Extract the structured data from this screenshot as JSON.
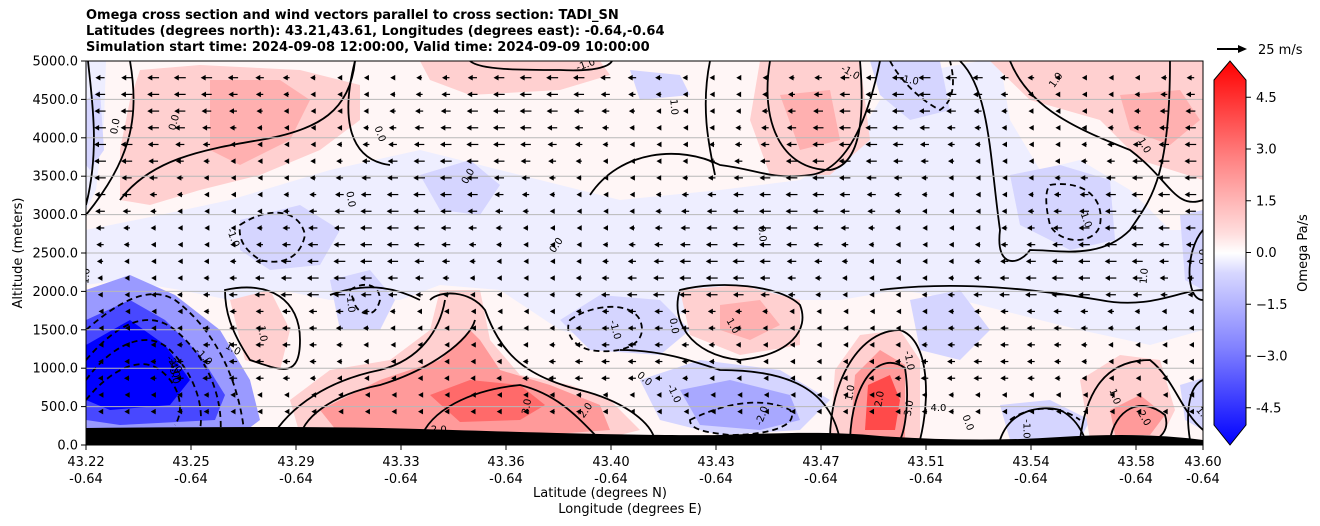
{
  "chart_data": {
    "type": "heatmap",
    "title_lines": [
      "Omega cross section and wind vectors parallel to cross section: TADI_SN",
      "Latitudes (degrees north): 43.21,43.61, Longitudes (degrees east): -0.64,-0.64",
      "Simulation start time: 2024-09-08 12:00:00, Valid time: 2024-09-09 10:00:00"
    ],
    "xlabel": "Latitude (degrees N)",
    "xlabel2": "Longitude (degrees E)",
    "ylabel": "Altitude (meters)",
    "x_ticks": [
      {
        "lat": "43.22",
        "lon": "-0.64"
      },
      {
        "lat": "43.25",
        "lon": "-0.64"
      },
      {
        "lat": "43.29",
        "lon": "-0.64"
      },
      {
        "lat": "43.33",
        "lon": "-0.64"
      },
      {
        "lat": "43.36",
        "lon": "-0.64"
      },
      {
        "lat": "43.40",
        "lon": "-0.64"
      },
      {
        "lat": "43.43",
        "lon": "-0.64"
      },
      {
        "lat": "43.47",
        "lon": "-0.64"
      },
      {
        "lat": "43.51",
        "lon": "-0.64"
      },
      {
        "lat": "43.54",
        "lon": "-0.64"
      },
      {
        "lat": "43.58",
        "lon": "-0.64"
      },
      {
        "lat": "43.60",
        "lon": "-0.64"
      }
    ],
    "xlim": [
      43.22,
      43.6
    ],
    "y_ticks": [
      "0.0",
      "500.0",
      "1000.0",
      "1500.0",
      "2000.0",
      "2500.0",
      "3000.0",
      "3500.0",
      "4000.0",
      "4500.0",
      "5000.0"
    ],
    "ylim": [
      0,
      5000
    ],
    "grid": "horizontal",
    "colorbar": {
      "label": "Omega Pa/s",
      "ticks": [
        "-4.5",
        "−3.0",
        "−1.5",
        "0.0",
        "1.5",
        "3.0",
        "4.5"
      ],
      "range": [
        -5,
        5
      ],
      "extend": "both"
    },
    "quiver_key": {
      "label": "25 m/s",
      "magnitude": 25
    },
    "contour_labels": [
      {
        "text": "-1.0",
        "lat": 43.39,
        "alt": 4950,
        "rot": -20
      },
      {
        "text": "0.0",
        "lat": 43.23,
        "alt": 4150,
        "rot": -80
      },
      {
        "text": "0.0",
        "lat": 43.25,
        "alt": 4200,
        "rot": -75
      },
      {
        "text": "0.0",
        "lat": 43.32,
        "alt": 4050,
        "rot": 70
      },
      {
        "text": "-1.0",
        "lat": 43.48,
        "alt": 4850,
        "rot": 30
      },
      {
        "text": "-1.0",
        "lat": 43.5,
        "alt": 4750,
        "rot": 10
      },
      {
        "text": "1.0",
        "lat": 43.42,
        "alt": 4400,
        "rot": 85
      },
      {
        "text": "1.0",
        "lat": 43.55,
        "alt": 4750,
        "rot": -55
      },
      {
        "text": "1.0",
        "lat": 43.58,
        "alt": 3900,
        "rot": 60
      },
      {
        "text": "0.0",
        "lat": 43.35,
        "alt": 3500,
        "rot": -60
      },
      {
        "text": "0.0",
        "lat": 43.31,
        "alt": 3200,
        "rot": 80
      },
      {
        "text": "-1.0",
        "lat": 43.27,
        "alt": 2700,
        "rot": 70
      },
      {
        "text": "0.0",
        "lat": 43.38,
        "alt": 2600,
        "rot": -55
      },
      {
        "text": "0.0",
        "lat": 43.45,
        "alt": 2750,
        "rot": 85
      },
      {
        "text": "-1.0",
        "lat": 43.56,
        "alt": 2950,
        "rot": 70
      },
      {
        "text": "0.0",
        "lat": 43.6,
        "alt": 2450,
        "rot": -90
      },
      {
        "text": "1.0",
        "lat": 43.22,
        "alt": 2200,
        "rot": -85
      },
      {
        "text": "1.0",
        "lat": 43.58,
        "alt": 2200,
        "rot": -85
      },
      {
        "text": "-1.0",
        "lat": 43.31,
        "alt": 1850,
        "rot": 85
      },
      {
        "text": "1.0",
        "lat": 43.28,
        "alt": 1450,
        "rot": 80
      },
      {
        "text": "1.0",
        "lat": 43.27,
        "alt": 1250,
        "rot": 30
      },
      {
        "text": "-1.0",
        "lat": 43.26,
        "alt": 1150,
        "rot": 45
      },
      {
        "text": "-2.0",
        "lat": 43.25,
        "alt": 1050,
        "rot": 55
      },
      {
        "text": "-4.0",
        "lat": 43.25,
        "alt": 1000,
        "rot": 75
      },
      {
        "text": "-3.0",
        "lat": 43.25,
        "alt": 920,
        "rot": 75
      },
      {
        "text": "-1.0",
        "lat": 43.4,
        "alt": 1500,
        "rot": 75
      },
      {
        "text": "0.0",
        "lat": 43.42,
        "alt": 1550,
        "rot": 80
      },
      {
        "text": "1.0",
        "lat": 43.44,
        "alt": 1550,
        "rot": 60
      },
      {
        "text": "0.0",
        "lat": 43.41,
        "alt": 860,
        "rot": 40
      },
      {
        "text": "-1.0",
        "lat": 43.42,
        "alt": 670,
        "rot": 65
      },
      {
        "text": "-2.0",
        "lat": 43.45,
        "alt": 380,
        "rot": -70
      },
      {
        "text": "3.0",
        "lat": 43.37,
        "alt": 500,
        "rot": -80
      },
      {
        "text": "2.0",
        "lat": 43.39,
        "alt": 450,
        "rot": -55
      },
      {
        "text": "2.0",
        "lat": 43.34,
        "alt": 200,
        "rot": 0
      },
      {
        "text": "-1.0",
        "lat": 43.5,
        "alt": 1100,
        "rot": 80
      },
      {
        "text": "1.0",
        "lat": 43.48,
        "alt": 680,
        "rot": -80
      },
      {
        "text": "2.0",
        "lat": 43.49,
        "alt": 600,
        "rot": -80
      },
      {
        "text": "3.0",
        "lat": 43.5,
        "alt": 480,
        "rot": -80
      },
      {
        "text": "4.0",
        "lat": 43.51,
        "alt": 480,
        "rot": 0
      },
      {
        "text": "0.0",
        "lat": 43.52,
        "alt": 290,
        "rot": 70
      },
      {
        "text": "-1.0",
        "lat": 43.54,
        "alt": 210,
        "rot": 90
      },
      {
        "text": "1.0",
        "lat": 43.57,
        "alt": 630,
        "rot": 70
      },
      {
        "text": "2.0",
        "lat": 43.58,
        "alt": 350,
        "rot": 60
      },
      {
        "text": "1.0",
        "lat": 43.6,
        "alt": 400,
        "rot": 50
      }
    ],
    "colors": {
      "neg_strong": "#0000ff",
      "neg_mid": "#7a7aff",
      "neg_light": "#cfd0ff",
      "neg_faint": "#eeeeff",
      "pos_faint": "#fff0f0",
      "pos_light": "#ffd0d0",
      "pos_mid": "#ff9a9a",
      "pos_strong": "#ff5050",
      "terrain": "#000000",
      "contour": "#000000"
    }
  }
}
